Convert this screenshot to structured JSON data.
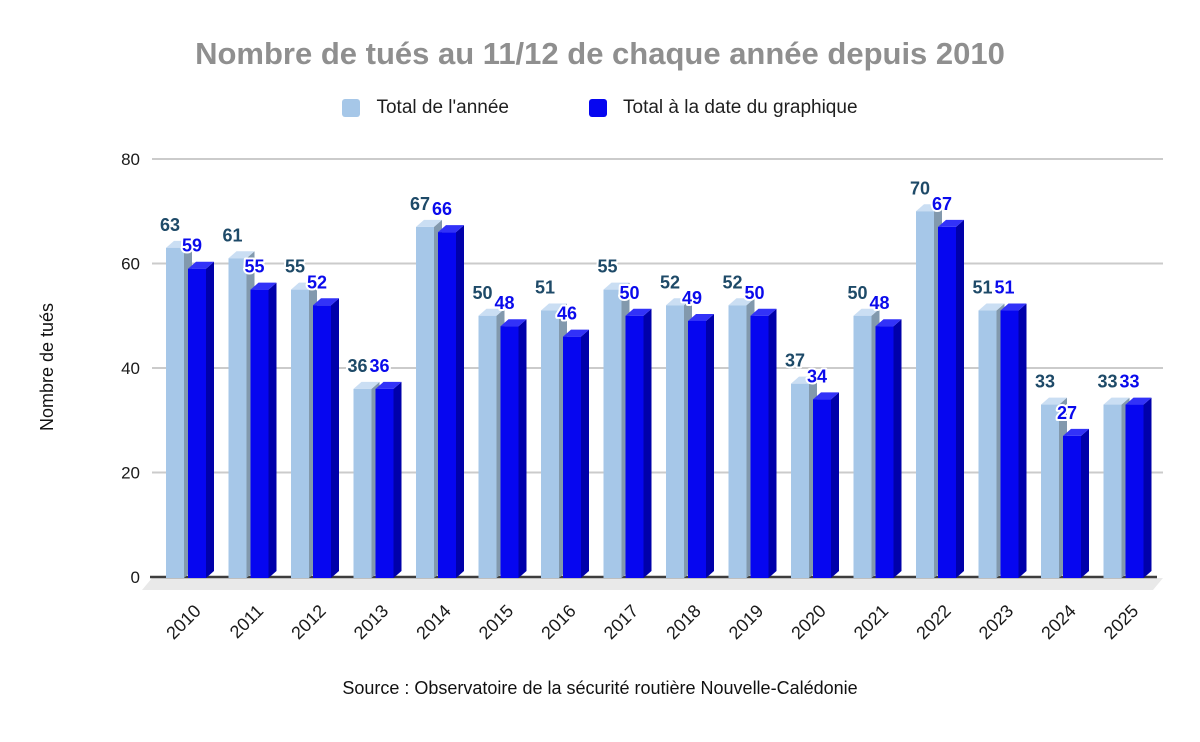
{
  "source": "Source : Observatoire de la sécurité routière Nouvelle-Calédonie",
  "chart_data": {
    "type": "bar",
    "style": "3d-column",
    "title": "Nombre de tués au 11/12 de chaque année depuis 2010",
    "categories": [
      "2010",
      "2011",
      "2012",
      "2013",
      "2014",
      "2015",
      "2016",
      "2017",
      "2018",
      "2019",
      "2020",
      "2021",
      "2022",
      "2023",
      "2024",
      "2025"
    ],
    "series": [
      {
        "name": "Total de l'année",
        "color": "#a6c7e8",
        "values": [
          63,
          61,
          55,
          36,
          67,
          50,
          51,
          55,
          52,
          52,
          37,
          50,
          70,
          51,
          33,
          33
        ]
      },
      {
        "name": "Total à la date du graphique",
        "color": "#0606f0",
        "values": [
          59,
          55,
          52,
          36,
          66,
          48,
          46,
          50,
          49,
          50,
          34,
          48,
          67,
          51,
          27,
          33
        ]
      }
    ],
    "xlabel": "",
    "ylabel": "Nombre de tués",
    "ylim": [
      0,
      80
    ],
    "yticks": [
      0,
      20,
      40,
      60,
      80
    ],
    "grid": true,
    "legend_position": "top",
    "data_labels": true,
    "label_colors": [
      "#1e4a68",
      "#0a0aec"
    ]
  },
  "colors": {
    "title": "#8f8f8f",
    "background": "#ffffff",
    "gridline": "#cbcbcb",
    "axis_line": "#3d3d3d",
    "floor": "#e9e9e9",
    "series1_top": "#cadef3",
    "series1_side": "#8299ad",
    "series2_top": "#3232f8",
    "series2_side": "#0000aa",
    "tick_text": "#1a1a1a"
  }
}
